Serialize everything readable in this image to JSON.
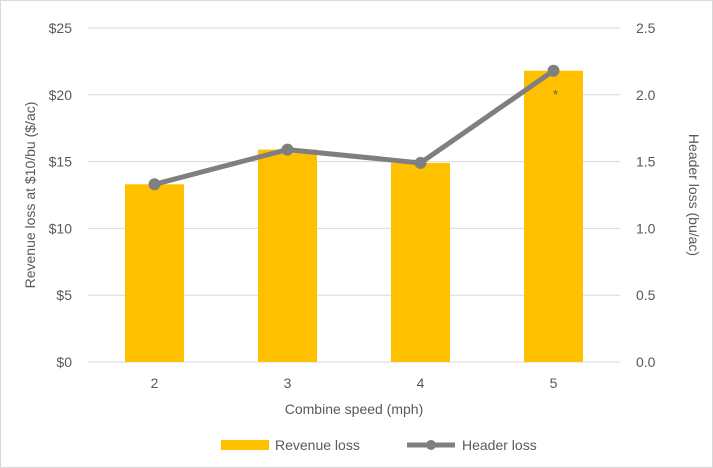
{
  "chart_data": {
    "type": "bar+line",
    "categories": [
      "2",
      "3",
      "4",
      "5"
    ],
    "xlabel": "Combine speed (mph)",
    "ylabel": "Revenue loss at $10/bu ($/ac)",
    "y2label": "Header loss (bu/ac)",
    "ylim": [
      0,
      25
    ],
    "y2lim": [
      0,
      2.5
    ],
    "yticks": [
      "$0",
      "$5",
      "$10",
      "$15",
      "$20",
      "$25"
    ],
    "y2ticks": [
      "0.0",
      "0.5",
      "1.0",
      "1.5",
      "2.0",
      "2.5"
    ],
    "grid": true,
    "legend_position": "bottom",
    "series": [
      {
        "name": "Revenue loss",
        "type": "bar",
        "axis": "left",
        "color": "#FFC000",
        "values": [
          13.3,
          15.9,
          14.9,
          21.8
        ]
      },
      {
        "name": "Header loss",
        "type": "line",
        "axis": "right",
        "color": "#7F7F7F",
        "values": [
          1.33,
          1.59,
          1.49,
          2.18
        ]
      }
    ],
    "annotations": [
      {
        "category": "5",
        "text": "*"
      }
    ]
  }
}
